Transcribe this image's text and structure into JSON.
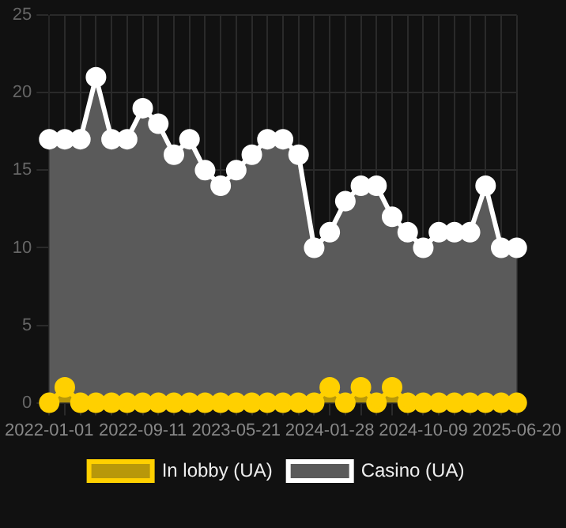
{
  "chart_data": {
    "type": "area",
    "categories": [
      "2022-01-01",
      null,
      null,
      null,
      null,
      null,
      "2022-09-11",
      null,
      null,
      null,
      null,
      null,
      "2023-05-21",
      null,
      null,
      null,
      null,
      null,
      "2024-01-28",
      null,
      null,
      null,
      null,
      null,
      "2024-10-09",
      null,
      null,
      null,
      null,
      null,
      "2025-06-20"
    ],
    "series": [
      {
        "name": "In lobby (UA)",
        "color": "#ffd000",
        "values": [
          0,
          1,
          0,
          0,
          0,
          0,
          0,
          0,
          0,
          0,
          0,
          0,
          0,
          0,
          0,
          0,
          0,
          0,
          1,
          0,
          1,
          0,
          1,
          0,
          0,
          0,
          0,
          0,
          0,
          0,
          0
        ]
      },
      {
        "name": "Casino (UA)",
        "color": "#ffffff",
        "values": [
          17,
          17,
          17,
          21,
          17,
          17,
          19,
          18,
          16,
          17,
          15,
          14,
          15,
          16,
          17,
          17,
          16,
          10,
          11,
          13,
          14,
          14,
          12,
          11,
          10,
          11,
          11,
          11,
          14,
          10,
          10
        ]
      }
    ],
    "ylim": [
      0,
      25
    ],
    "yticks": [
      0,
      5,
      10,
      15,
      20,
      25
    ],
    "grid": true,
    "legend": "bottom",
    "marker": "circle"
  }
}
